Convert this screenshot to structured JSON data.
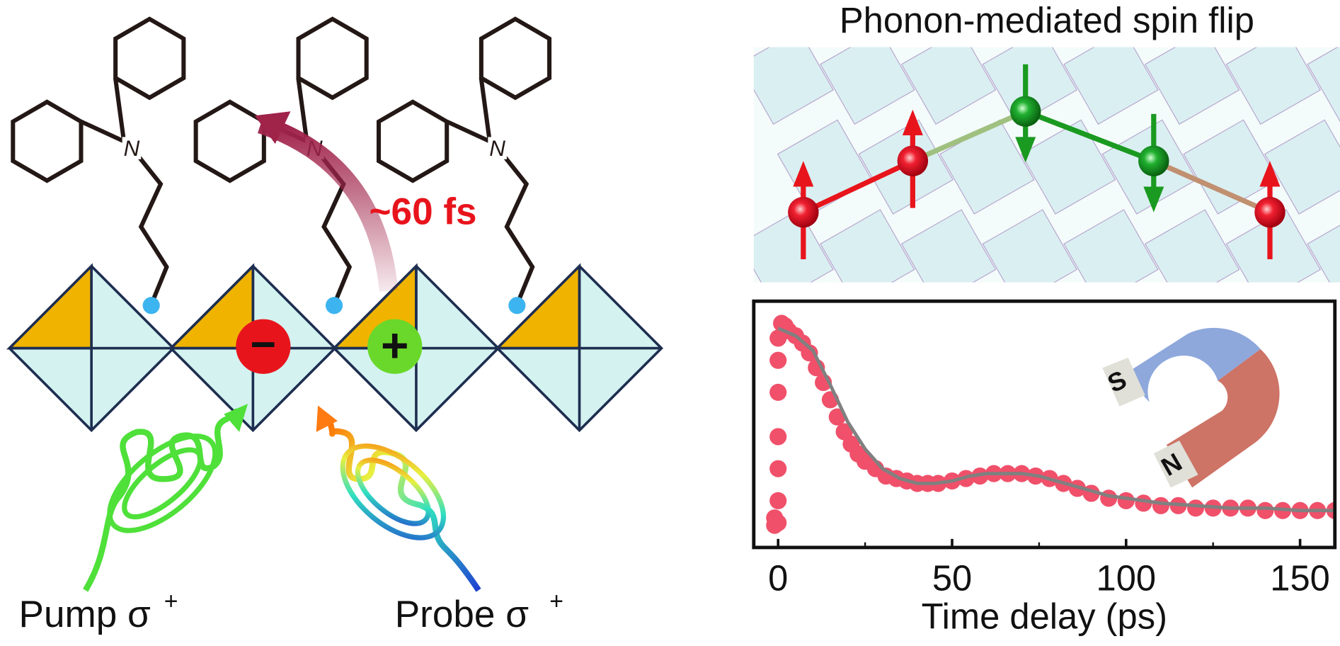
{
  "figure": {
    "pump_label": "Pump σ",
    "probe_label": "Probe σ",
    "superscript": "+",
    "time_label": "~60 fs",
    "panel_title": "Phonon-mediated spin flip",
    "minus": "−",
    "plus": "+",
    "atom_label": "N",
    "magnet_s": "S",
    "magnet_n": "N"
  },
  "chart_data": {
    "type": "scatter",
    "x_label": "Time delay (ps)",
    "xlim": [
      -7,
      160
    ],
    "xticks": [
      0,
      50,
      100,
      150
    ],
    "xminorticks": [
      25,
      75,
      125
    ],
    "ylim": [
      0,
      1
    ],
    "series": [
      {
        "type": "scatter",
        "color": "#f0506a",
        "x": [
          -1,
          -1,
          0,
          0,
          0,
          0,
          0,
          0,
          0,
          1,
          2,
          3,
          5,
          7,
          9,
          11,
          13,
          15,
          17,
          19,
          21,
          23,
          25,
          28,
          31,
          34,
          37,
          40,
          43,
          46,
          50,
          54,
          58,
          62,
          66,
          70,
          74,
          78,
          82,
          86,
          90,
          95,
          100,
          105,
          110,
          115,
          120,
          125,
          130,
          135,
          140,
          145,
          150,
          155,
          160
        ],
        "values": [
          0.12,
          0.09,
          0.1,
          0.19,
          0.32,
          0.45,
          0.63,
          0.76,
          0.85,
          0.91,
          0.9,
          0.88,
          0.86,
          0.83,
          0.79,
          0.73,
          0.67,
          0.6,
          0.53,
          0.47,
          0.42,
          0.38,
          0.35,
          0.32,
          0.29,
          0.28,
          0.27,
          0.26,
          0.26,
          0.26,
          0.27,
          0.28,
          0.29,
          0.3,
          0.3,
          0.3,
          0.29,
          0.28,
          0.26,
          0.24,
          0.22,
          0.2,
          0.19,
          0.18,
          0.17,
          0.17,
          0.16,
          0.16,
          0.16,
          0.16,
          0.15,
          0.15,
          0.15,
          0.15,
          0.15
        ]
      },
      {
        "type": "line",
        "color": "#808080",
        "x": [
          0,
          5,
          10,
          15,
          20,
          25,
          30,
          35,
          40,
          45,
          50,
          55,
          60,
          65,
          70,
          75,
          80,
          85,
          90,
          95,
          100,
          110,
          120,
          130,
          140,
          150,
          160
        ],
        "values": [
          0.89,
          0.86,
          0.8,
          0.66,
          0.51,
          0.4,
          0.32,
          0.28,
          0.26,
          0.26,
          0.27,
          0.29,
          0.3,
          0.3,
          0.3,
          0.29,
          0.27,
          0.25,
          0.23,
          0.21,
          0.2,
          0.18,
          0.17,
          0.16,
          0.16,
          0.15,
          0.15
        ]
      }
    ]
  }
}
